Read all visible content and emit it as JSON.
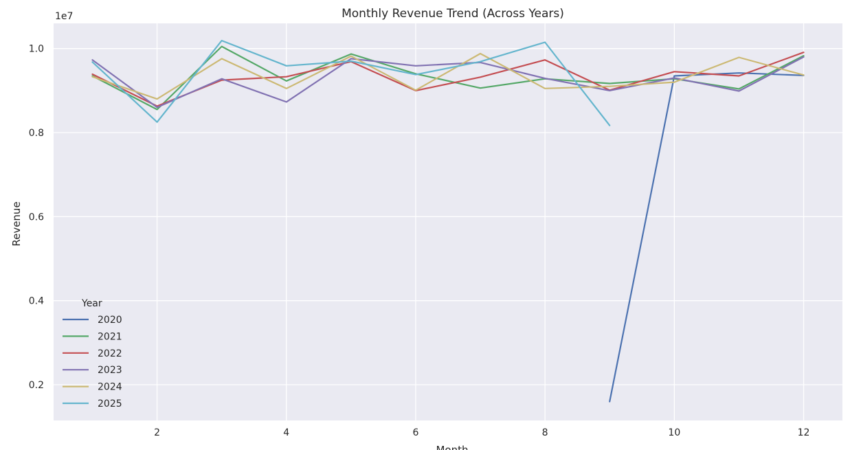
{
  "chart_data": {
    "type": "line",
    "title": "Monthly Revenue Trend (Across Years)",
    "xlabel": "Month",
    "ylabel": "Revenue",
    "y_offset_label": "1e7",
    "xlim": [
      0.4,
      12.6
    ],
    "ylim": [
      1150000,
      10600000
    ],
    "x_ticks": [
      2,
      4,
      6,
      8,
      10,
      12
    ],
    "y_ticks": [
      2000000,
      4000000,
      6000000,
      8000000,
      10000000
    ],
    "y_tick_labels": [
      "0.2",
      "0.4",
      "0.6",
      "0.8",
      "1.0"
    ],
    "grid": true,
    "legend": {
      "title": "Year",
      "placement": "lower-left"
    },
    "background_color": "#eaeaf2",
    "series": [
      {
        "name": "2020",
        "color": "#4c72b0",
        "x": [
          9,
          10,
          11,
          12
        ],
        "y": [
          1600000,
          9350000,
          9420000,
          9360000
        ]
      },
      {
        "name": "2021",
        "color": "#55a868",
        "x": [
          1,
          2,
          3,
          4,
          5,
          6,
          7,
          8,
          9,
          10,
          11,
          12
        ],
        "y": [
          9350000,
          8550000,
          10050000,
          9230000,
          9870000,
          9400000,
          9060000,
          9280000,
          9170000,
          9280000,
          9040000,
          9830000
        ]
      },
      {
        "name": "2022",
        "color": "#c44e52",
        "x": [
          1,
          2,
          3,
          4,
          5,
          6,
          7,
          8,
          9,
          10,
          11,
          12
        ],
        "y": [
          9390000,
          8630000,
          9250000,
          9330000,
          9690000,
          9000000,
          9320000,
          9730000,
          9010000,
          9450000,
          9350000,
          9910000
        ]
      },
      {
        "name": "2023",
        "color": "#8172b2",
        "x": [
          1,
          2,
          3,
          4,
          5,
          6,
          7,
          8,
          9,
          10,
          11,
          12
        ],
        "y": [
          9730000,
          8600000,
          9280000,
          8730000,
          9760000,
          9590000,
          9670000,
          9290000,
          9000000,
          9300000,
          8990000,
          9800000
        ]
      },
      {
        "name": "2024",
        "color": "#ccb974",
        "x": [
          1,
          2,
          3,
          4,
          5,
          6,
          7,
          8,
          9,
          10,
          11,
          12
        ],
        "y": [
          9330000,
          8800000,
          9760000,
          9050000,
          9820000,
          9010000,
          9880000,
          9050000,
          9100000,
          9200000,
          9790000,
          9370000
        ]
      },
      {
        "name": "2025",
        "color": "#64b5cd",
        "x": [
          1,
          2,
          3,
          4,
          5,
          6,
          7,
          8,
          9
        ],
        "y": [
          9680000,
          8250000,
          10190000,
          9590000,
          9700000,
          9380000,
          9690000,
          10150000,
          8170000
        ]
      }
    ]
  }
}
